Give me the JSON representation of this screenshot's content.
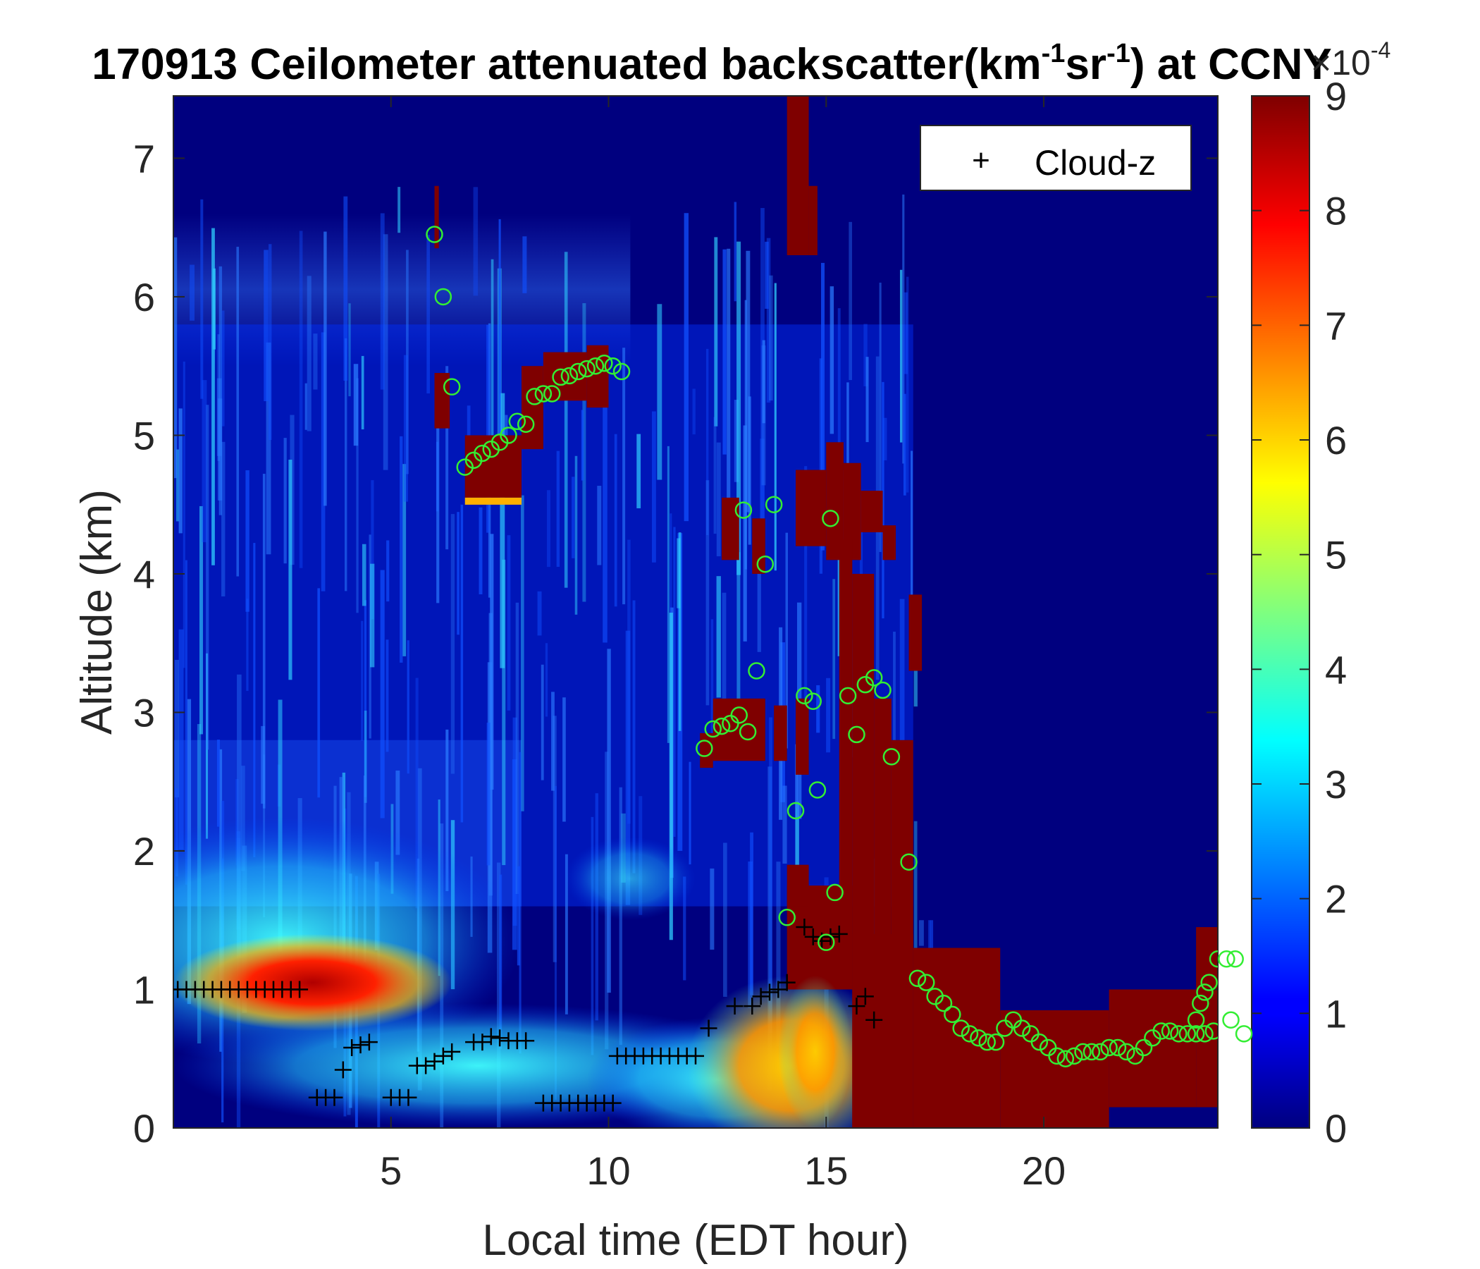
{
  "chart_data": {
    "type": "heatmap",
    "title": {
      "prefix": "170913 Ceilometer attenuated backscatter(km",
      "sup1": "-1",
      "mid": "sr",
      "sup2": "-1",
      "suffix": ") at CCNY"
    },
    "xlabel": "Local time (EDT hour)",
    "ylabel": "Altitude (km)",
    "xlim": [
      0,
      24
    ],
    "ylim": [
      0,
      7.45
    ],
    "xticks": [
      5,
      10,
      15,
      20
    ],
    "yticks": [
      0,
      1,
      2,
      3,
      4,
      5,
      6,
      7
    ],
    "colorbar": {
      "ticks": [
        0,
        1,
        2,
        3,
        4,
        5,
        6,
        7,
        8,
        9
      ],
      "range": [
        0,
        9
      ],
      "colormap": "jet",
      "scale_label": {
        "base": "×10",
        "exp": "-4"
      }
    },
    "legend": {
      "placement": "top-right",
      "entries": [
        {
          "marker": "+",
          "label": "Cloud-z",
          "color": "#000000"
        }
      ]
    },
    "colors": {
      "background": "#00007f",
      "cloud_marker": "#000000",
      "circle_marker": "#33ee33"
    },
    "cloud_z_plus": [
      {
        "x": 0.1,
        "y": 1.0
      },
      {
        "x": 0.3,
        "y": 1.0
      },
      {
        "x": 0.5,
        "y": 1.0
      },
      {
        "x": 0.7,
        "y": 1.0
      },
      {
        "x": 0.9,
        "y": 1.0
      },
      {
        "x": 1.1,
        "y": 1.0
      },
      {
        "x": 1.3,
        "y": 1.0
      },
      {
        "x": 1.5,
        "y": 1.0
      },
      {
        "x": 1.7,
        "y": 1.0
      },
      {
        "x": 1.9,
        "y": 1.0
      },
      {
        "x": 2.1,
        "y": 1.0
      },
      {
        "x": 2.3,
        "y": 1.0
      },
      {
        "x": 2.5,
        "y": 1.0
      },
      {
        "x": 2.7,
        "y": 1.0
      },
      {
        "x": 2.9,
        "y": 1.0
      },
      {
        "x": 3.3,
        "y": 0.22
      },
      {
        "x": 3.5,
        "y": 0.22
      },
      {
        "x": 3.7,
        "y": 0.22
      },
      {
        "x": 3.9,
        "y": 0.42
      },
      {
        "x": 4.1,
        "y": 0.58
      },
      {
        "x": 4.3,
        "y": 0.6
      },
      {
        "x": 4.5,
        "y": 0.62
      },
      {
        "x": 5.0,
        "y": 0.22
      },
      {
        "x": 5.2,
        "y": 0.22
      },
      {
        "x": 5.4,
        "y": 0.22
      },
      {
        "x": 5.6,
        "y": 0.45
      },
      {
        "x": 5.8,
        "y": 0.45
      },
      {
        "x": 6.0,
        "y": 0.48
      },
      {
        "x": 6.2,
        "y": 0.52
      },
      {
        "x": 6.4,
        "y": 0.55
      },
      {
        "x": 6.9,
        "y": 0.62
      },
      {
        "x": 7.1,
        "y": 0.62
      },
      {
        "x": 7.3,
        "y": 0.66
      },
      {
        "x": 7.5,
        "y": 0.65
      },
      {
        "x": 7.7,
        "y": 0.63
      },
      {
        "x": 7.9,
        "y": 0.63
      },
      {
        "x": 8.1,
        "y": 0.63
      },
      {
        "x": 8.5,
        "y": 0.18
      },
      {
        "x": 8.7,
        "y": 0.18
      },
      {
        "x": 8.9,
        "y": 0.18
      },
      {
        "x": 9.1,
        "y": 0.18
      },
      {
        "x": 9.3,
        "y": 0.18
      },
      {
        "x": 9.5,
        "y": 0.18
      },
      {
        "x": 9.7,
        "y": 0.18
      },
      {
        "x": 9.9,
        "y": 0.18
      },
      {
        "x": 10.1,
        "y": 0.18
      },
      {
        "x": 10.2,
        "y": 0.52
      },
      {
        "x": 10.4,
        "y": 0.52
      },
      {
        "x": 10.6,
        "y": 0.52
      },
      {
        "x": 10.8,
        "y": 0.52
      },
      {
        "x": 11.0,
        "y": 0.52
      },
      {
        "x": 11.2,
        "y": 0.52
      },
      {
        "x": 11.4,
        "y": 0.52
      },
      {
        "x": 11.6,
        "y": 0.52
      },
      {
        "x": 11.8,
        "y": 0.52
      },
      {
        "x": 12.0,
        "y": 0.52
      },
      {
        "x": 12.3,
        "y": 0.72
      },
      {
        "x": 12.9,
        "y": 0.88
      },
      {
        "x": 13.3,
        "y": 0.88
      },
      {
        "x": 13.5,
        "y": 0.95
      },
      {
        "x": 13.7,
        "y": 0.98
      },
      {
        "x": 13.9,
        "y": 1.0
      },
      {
        "x": 14.1,
        "y": 1.05
      },
      {
        "x": 14.5,
        "y": 1.45
      },
      {
        "x": 14.7,
        "y": 1.38
      },
      {
        "x": 14.9,
        "y": 1.35
      },
      {
        "x": 15.1,
        "y": 1.38
      },
      {
        "x": 15.3,
        "y": 1.4
      },
      {
        "x": 15.7,
        "y": 0.88
      },
      {
        "x": 15.9,
        "y": 0.95
      },
      {
        "x": 16.1,
        "y": 0.78
      }
    ],
    "ccny_circles": [
      {
        "x": 6.0,
        "y": 6.45
      },
      {
        "x": 6.2,
        "y": 6.0
      },
      {
        "x": 6.4,
        "y": 5.35
      },
      {
        "x": 6.7,
        "y": 4.77
      },
      {
        "x": 6.9,
        "y": 4.82
      },
      {
        "x": 7.1,
        "y": 4.87
      },
      {
        "x": 7.3,
        "y": 4.9
      },
      {
        "x": 7.5,
        "y": 4.95
      },
      {
        "x": 7.7,
        "y": 5.0
      },
      {
        "x": 7.9,
        "y": 5.1
      },
      {
        "x": 8.1,
        "y": 5.08
      },
      {
        "x": 8.3,
        "y": 5.28
      },
      {
        "x": 8.5,
        "y": 5.3
      },
      {
        "x": 8.7,
        "y": 5.3
      },
      {
        "x": 8.9,
        "y": 5.42
      },
      {
        "x": 9.1,
        "y": 5.43
      },
      {
        "x": 9.3,
        "y": 5.46
      },
      {
        "x": 9.5,
        "y": 5.48
      },
      {
        "x": 9.7,
        "y": 5.5
      },
      {
        "x": 9.9,
        "y": 5.52
      },
      {
        "x": 10.1,
        "y": 5.5
      },
      {
        "x": 10.3,
        "y": 5.46
      },
      {
        "x": 12.2,
        "y": 2.74
      },
      {
        "x": 12.4,
        "y": 2.88
      },
      {
        "x": 12.6,
        "y": 2.9
      },
      {
        "x": 12.8,
        "y": 2.92
      },
      {
        "x": 13.0,
        "y": 2.98
      },
      {
        "x": 13.2,
        "y": 2.86
      },
      {
        "x": 13.4,
        "y": 3.3
      },
      {
        "x": 13.1,
        "y": 4.46
      },
      {
        "x": 13.6,
        "y": 4.07
      },
      {
        "x": 13.8,
        "y": 4.5
      },
      {
        "x": 14.1,
        "y": 1.52
      },
      {
        "x": 14.3,
        "y": 2.29
      },
      {
        "x": 14.5,
        "y": 3.12
      },
      {
        "x": 14.7,
        "y": 3.08
      },
      {
        "x": 14.8,
        "y": 2.44
      },
      {
        "x": 15.0,
        "y": 1.34
      },
      {
        "x": 15.1,
        "y": 4.4
      },
      {
        "x": 15.2,
        "y": 1.7
      },
      {
        "x": 15.5,
        "y": 3.12
      },
      {
        "x": 15.7,
        "y": 2.84
      },
      {
        "x": 15.9,
        "y": 3.2
      },
      {
        "x": 16.1,
        "y": 3.25
      },
      {
        "x": 16.3,
        "y": 3.16
      },
      {
        "x": 16.5,
        "y": 2.68
      },
      {
        "x": 16.9,
        "y": 1.92
      },
      {
        "x": 17.1,
        "y": 1.08
      },
      {
        "x": 17.3,
        "y": 1.05
      },
      {
        "x": 17.5,
        "y": 0.95
      },
      {
        "x": 17.7,
        "y": 0.9
      },
      {
        "x": 17.9,
        "y": 0.82
      },
      {
        "x": 18.1,
        "y": 0.72
      },
      {
        "x": 18.3,
        "y": 0.68
      },
      {
        "x": 18.5,
        "y": 0.65
      },
      {
        "x": 18.7,
        "y": 0.62
      },
      {
        "x": 18.9,
        "y": 0.62
      },
      {
        "x": 19.1,
        "y": 0.72
      },
      {
        "x": 19.3,
        "y": 0.78
      },
      {
        "x": 19.5,
        "y": 0.72
      },
      {
        "x": 19.7,
        "y": 0.68
      },
      {
        "x": 19.9,
        "y": 0.62
      },
      {
        "x": 20.1,
        "y": 0.58
      },
      {
        "x": 20.3,
        "y": 0.52
      },
      {
        "x": 20.5,
        "y": 0.5
      },
      {
        "x": 20.7,
        "y": 0.52
      },
      {
        "x": 20.9,
        "y": 0.55
      },
      {
        "x": 21.1,
        "y": 0.55
      },
      {
        "x": 21.3,
        "y": 0.55
      },
      {
        "x": 21.5,
        "y": 0.58
      },
      {
        "x": 21.7,
        "y": 0.58
      },
      {
        "x": 21.9,
        "y": 0.55
      },
      {
        "x": 22.1,
        "y": 0.52
      },
      {
        "x": 22.3,
        "y": 0.58
      },
      {
        "x": 22.5,
        "y": 0.65
      },
      {
        "x": 22.7,
        "y": 0.7
      },
      {
        "x": 22.9,
        "y": 0.7
      },
      {
        "x": 23.1,
        "y": 0.68
      },
      {
        "x": 23.3,
        "y": 0.68
      },
      {
        "x": 23.5,
        "y": 0.68
      },
      {
        "x": 23.7,
        "y": 0.68
      },
      {
        "x": 23.9,
        "y": 0.7
      },
      {
        "x": 23.5,
        "y": 0.78
      },
      {
        "x": 23.6,
        "y": 0.9
      },
      {
        "x": 23.7,
        "y": 0.98
      },
      {
        "x": 23.8,
        "y": 1.05
      },
      {
        "x": 24.0,
        "y": 1.22
      },
      {
        "x": 24.2,
        "y": 1.22
      },
      {
        "x": 24.4,
        "y": 1.22
      },
      {
        "x": 24.3,
        "y": 0.78
      },
      {
        "x": 24.6,
        "y": 0.68
      }
    ]
  }
}
